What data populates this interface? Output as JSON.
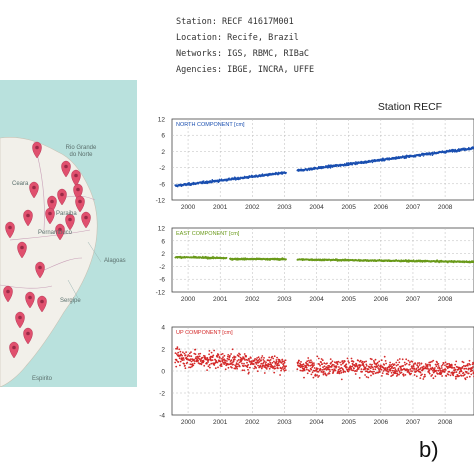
{
  "map": {
    "labels": [
      "Ceara",
      "Rio Grande do Norte",
      "Paraiba",
      "Pernambuco",
      "Alagoas",
      "Sergipe",
      "Espirito"
    ],
    "marker_icon": "map-pin-icon",
    "marker_color": "#e0506e",
    "land_color": "#f2f0ea",
    "sea_color": "#b9e1dd"
  },
  "station_info": {
    "station": "Station: RECF 41617M001",
    "location": "Location: Recife, Brazil",
    "networks": "Networks: IGS, RBMC, RIBaC",
    "agencies": "Agencies: IBGE, INCRA, UFFE"
  },
  "panel_label": "b)",
  "chart_data": {
    "type": "scatter",
    "title": "Station RECF",
    "x_ticks": [
      "2000",
      "2001",
      "2002",
      "2003",
      "2004",
      "2005",
      "2006",
      "2007",
      "2008"
    ],
    "xlim": [
      1999.5,
      2008.9
    ],
    "panels": [
      {
        "name": "NORTH COMPONENT [cm]",
        "color": "#1a4fb0",
        "ylim": [
          -12,
          12
        ],
        "y_ticks": [
          "12",
          "6",
          "2",
          "-2",
          "-6",
          "-12"
        ],
        "segments": [
          {
            "x": [
              1999.6,
              2003.05
            ],
            "y": [
              -7.8,
              -3.9
            ]
          },
          {
            "x": [
              2003.4,
              2008.9
            ],
            "y": [
              -3.3,
              3.4
            ]
          }
        ],
        "noise": 0.4
      },
      {
        "name": "EAST COMPONENT [cm]",
        "color": "#6a9a1a",
        "ylim": [
          -12,
          12
        ],
        "y_ticks": [
          "12",
          "6",
          "2",
          "-2",
          "-6",
          "-12"
        ],
        "segments": [
          {
            "x": [
              1999.6,
              2001.2
            ],
            "y": [
              1.1,
              0.7
            ]
          },
          {
            "x": [
              2001.3,
              2003.05
            ],
            "y": [
              0.4,
              0.3
            ]
          },
          {
            "x": [
              2003.4,
              2008.9
            ],
            "y": [
              0.2,
              -0.7
            ]
          }
        ],
        "noise": 0.35
      },
      {
        "name": "UP COMPONENT [cm]",
        "color": "#d42a2a",
        "ylim": [
          -4,
          4
        ],
        "y_ticks": [
          "4",
          "2",
          "0",
          "-2",
          "-4"
        ],
        "segments": [
          {
            "x": [
              1999.6,
              2003.05
            ],
            "y": [
              1.2,
              0.6
            ]
          },
          {
            "x": [
              2003.4,
              2008.9
            ],
            "y": [
              0.4,
              0.1
            ]
          }
        ],
        "noise": 0.9
      }
    ]
  }
}
